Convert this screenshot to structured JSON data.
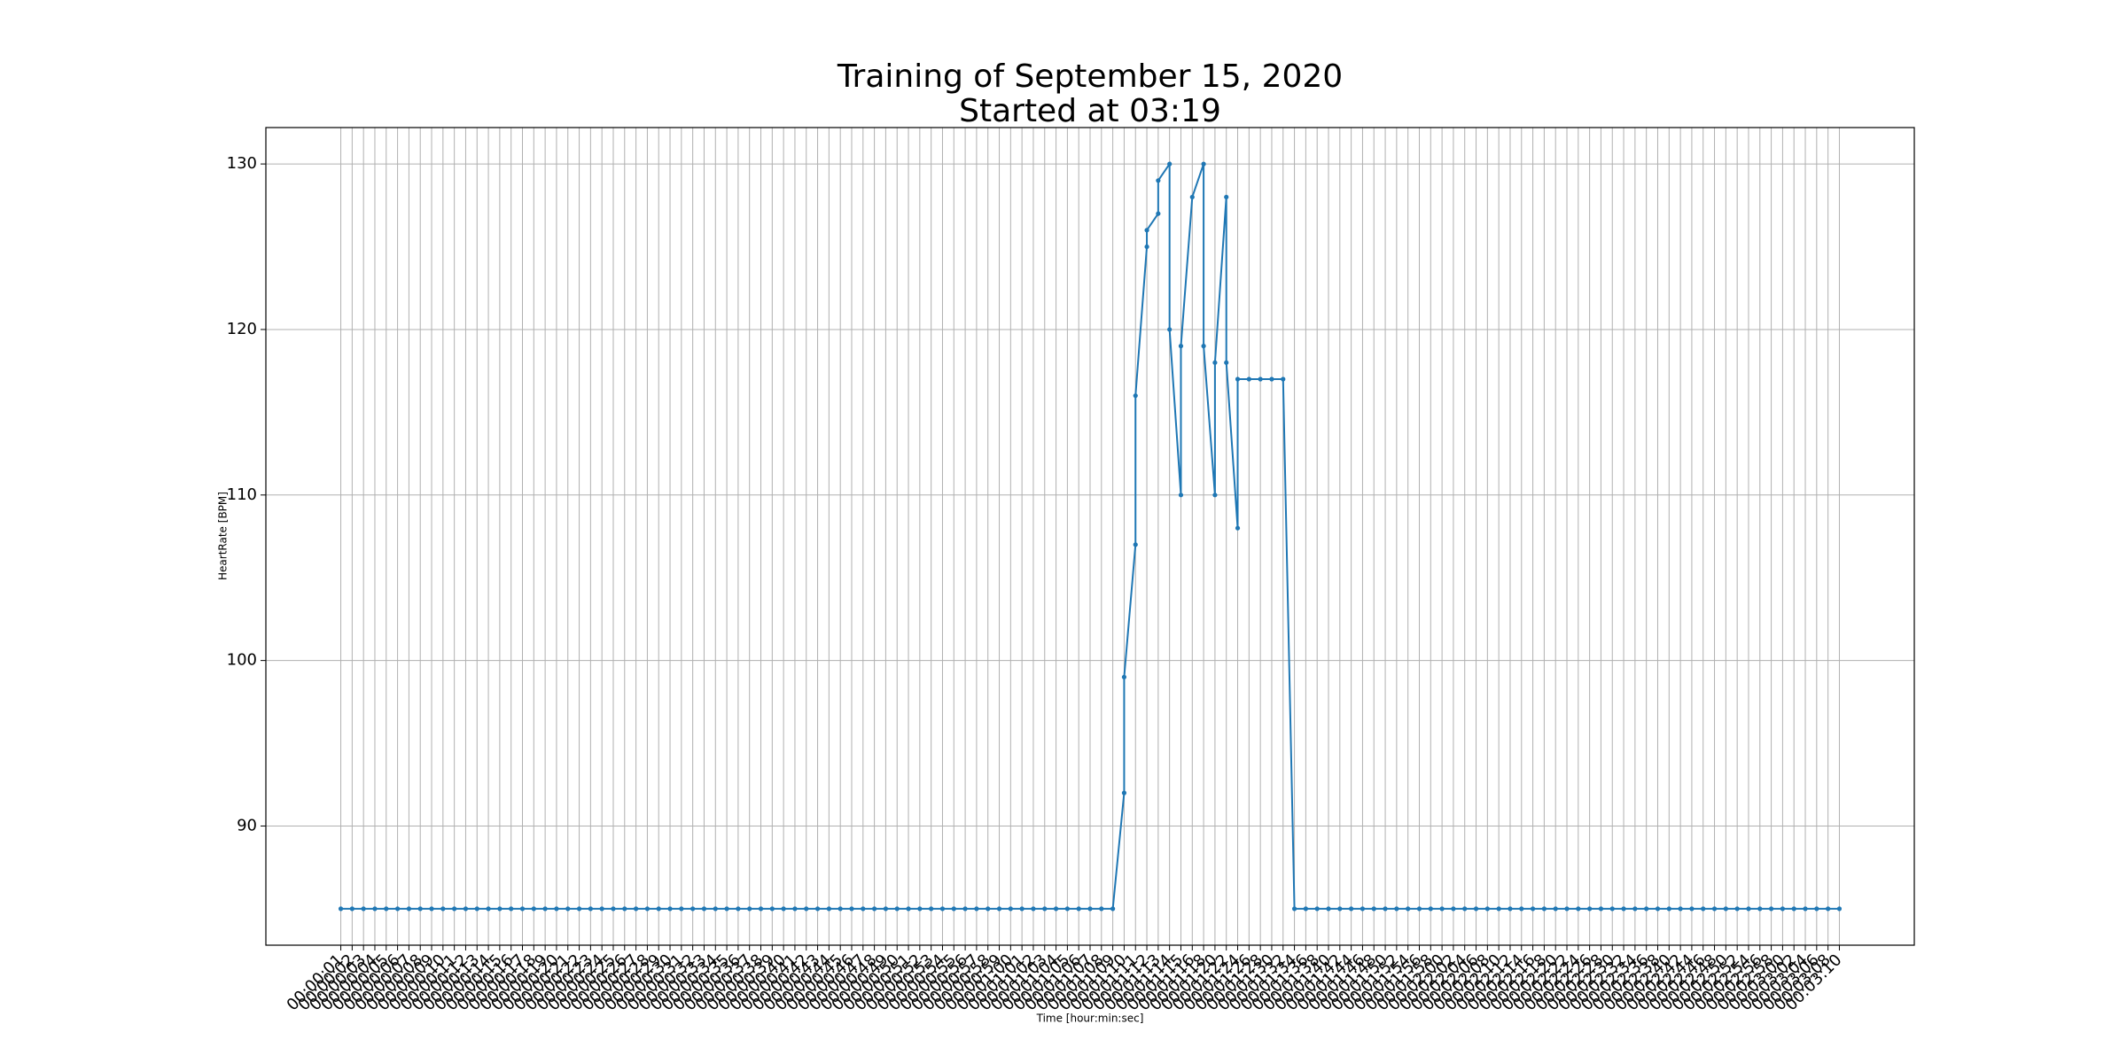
{
  "chart_data": {
    "type": "line",
    "title": "Training of September 15, 2020",
    "subtitle": "Started at 03:19",
    "xlabel": "Time [hour:min:sec]",
    "ylabel": "HeartRate [BPM]",
    "categories": [
      "00:00:01",
      "00:00:02",
      "00:00:03",
      "00:00:04",
      "00:00:05",
      "00:00:06",
      "00:00:07",
      "00:00:08",
      "00:00:09",
      "00:00:10",
      "00:00:11",
      "00:00:12",
      "00:00:13",
      "00:00:14",
      "00:00:15",
      "00:00:16",
      "00:00:17",
      "00:00:18",
      "00:00:19",
      "00:00:20",
      "00:00:21",
      "00:00:22",
      "00:00:23",
      "00:00:24",
      "00:00:25",
      "00:00:26",
      "00:00:27",
      "00:00:28",
      "00:00:29",
      "00:00:30",
      "00:00:31",
      "00:00:32",
      "00:00:33",
      "00:00:34",
      "00:00:35",
      "00:00:36",
      "00:00:37",
      "00:00:38",
      "00:00:39",
      "00:00:40",
      "00:00:41",
      "00:00:42",
      "00:00:43",
      "00:00:44",
      "00:00:45",
      "00:00:46",
      "00:00:47",
      "00:00:48",
      "00:00:49",
      "00:00:50",
      "00:00:51",
      "00:00:52",
      "00:00:53",
      "00:00:54",
      "00:00:55",
      "00:00:56",
      "00:00:57",
      "00:00:58",
      "00:00:59",
      "00:01:00",
      "00:01:01",
      "00:01:02",
      "00:01:03",
      "00:01:04",
      "00:01:05",
      "00:01:06",
      "00:01:07",
      "00:01:08",
      "00:01:09",
      "00:01:10",
      "00:01:10",
      "00:01:11",
      "00:01:11",
      "00:01:12",
      "00:01:12",
      "00:01:13",
      "00:01:13",
      "00:01:14",
      "00:01:14",
      "00:01:15",
      "00:01:15",
      "00:01:16",
      "00:01:18",
      "00:01:18",
      "00:01:20",
      "00:01:20",
      "00:01:22",
      "00:01:22",
      "00:01:24",
      "00:01:24",
      "00:01:26",
      "00:01:28",
      "00:01:30",
      "00:01:32",
      "00:01:34",
      "00:01:36",
      "00:01:38",
      "00:01:40",
      "00:01:42",
      "00:01:44",
      "00:01:46",
      "00:01:48",
      "00:01:50",
      "00:01:52",
      "00:01:54",
      "00:01:56",
      "00:01:58",
      "00:02:00",
      "00:02:02",
      "00:02:04",
      "00:02:06",
      "00:02:08",
      "00:02:10",
      "00:02:12",
      "00:02:14",
      "00:02:16",
      "00:02:18",
      "00:02:20",
      "00:02:22",
      "00:02:24",
      "00:02:26",
      "00:02:28",
      "00:02:30",
      "00:02:32",
      "00:02:34",
      "00:02:36",
      "00:02:38",
      "00:02:40",
      "00:02:42",
      "00:02:44",
      "00:02:46",
      "00:02:48",
      "00:02:50",
      "00:02:52",
      "00:02:54",
      "00:02:56",
      "00:02:58",
      "00:03:00",
      "00:03:02",
      "00:03:04",
      "00:03:06",
      "00:03:08",
      "00:03:10"
    ],
    "values": [
      85,
      85,
      85,
      85,
      85,
      85,
      85,
      85,
      85,
      85,
      85,
      85,
      85,
      85,
      85,
      85,
      85,
      85,
      85,
      85,
      85,
      85,
      85,
      85,
      85,
      85,
      85,
      85,
      85,
      85,
      85,
      85,
      85,
      85,
      85,
      85,
      85,
      85,
      85,
      85,
      85,
      85,
      85,
      85,
      85,
      85,
      85,
      85,
      85,
      85,
      85,
      85,
      85,
      85,
      85,
      85,
      85,
      85,
      85,
      85,
      85,
      85,
      85,
      85,
      85,
      85,
      85,
      85,
      85,
      92,
      99,
      107,
      116,
      125,
      126,
      127,
      129,
      130,
      120,
      110,
      119,
      128,
      130,
      119,
      110,
      118,
      128,
      118,
      108,
      117,
      117,
      117,
      117,
      117,
      85,
      85,
      85,
      85,
      85,
      85,
      85,
      85,
      85,
      85,
      85,
      85,
      85,
      85,
      85,
      85,
      85,
      85,
      85,
      85,
      85,
      85,
      85,
      85,
      85,
      85,
      85,
      85,
      85,
      85,
      85,
      85,
      85,
      85,
      85,
      85,
      85,
      85,
      85,
      85,
      85,
      85,
      85,
      85,
      85,
      85,
      85,
      85,
      85
    ],
    "color": "#1f77b4",
    "ylim": [
      82.8,
      132.2
    ],
    "yticks": [
      90,
      100,
      110,
      120,
      130
    ],
    "grid": true
  }
}
